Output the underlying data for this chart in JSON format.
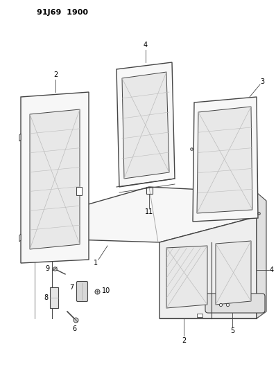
{
  "title": "91J69  1900",
  "background_color": "#ffffff",
  "line_color": "#444444",
  "fig_width": 3.98,
  "fig_height": 5.33,
  "dpi": 100,
  "glass_color": "#e8e8e8",
  "face_light": "#f7f7f7",
  "face_mid": "#eeeeee",
  "face_dark": "#e0e0e0"
}
